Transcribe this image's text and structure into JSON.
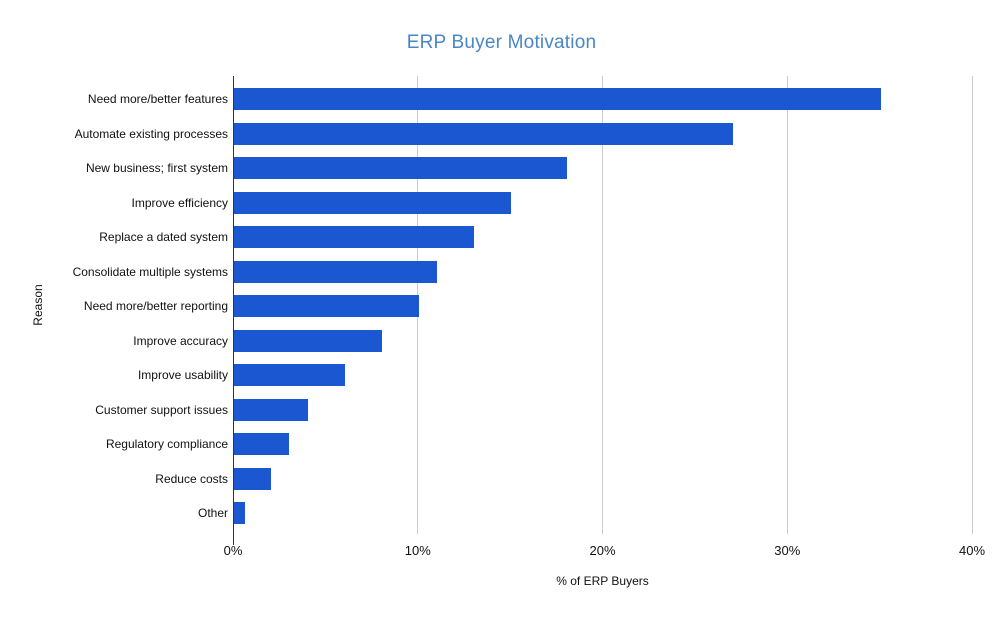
{
  "title": "ERP Buyer Motivation",
  "colors": {
    "title": "#4A86C6",
    "bar": "#1B57D1",
    "grid": "#CCCCCC",
    "axis": "#333333",
    "text": "#111111",
    "background": "#FFFFFF"
  },
  "chart_data": {
    "type": "bar",
    "orientation": "horizontal",
    "title": "ERP Buyer Motivation",
    "xlabel": "% of ERP Buyers",
    "ylabel": "Reason",
    "categories": [
      "Need more/better features",
      "Automate existing processes",
      "New business; first system",
      "Improve efficiency",
      "Replace a dated system",
      "Consolidate multiple systems",
      "Need more/better reporting",
      "Improve accuracy",
      "Improve usability",
      "Customer support issues",
      "Regulatory compliance",
      "Reduce costs",
      "Other"
    ],
    "values": [
      35,
      27,
      18,
      15,
      13,
      11,
      10,
      8,
      6,
      4,
      3,
      2,
      0.6
    ],
    "xlim": [
      0,
      40
    ],
    "xtick_values": [
      0,
      10,
      20,
      30,
      40
    ],
    "xtick_labels": [
      "0%",
      "10%",
      "20%",
      "30%",
      "40%"
    ],
    "grid": true,
    "legend": false,
    "bar_color": "#1B57D1"
  }
}
